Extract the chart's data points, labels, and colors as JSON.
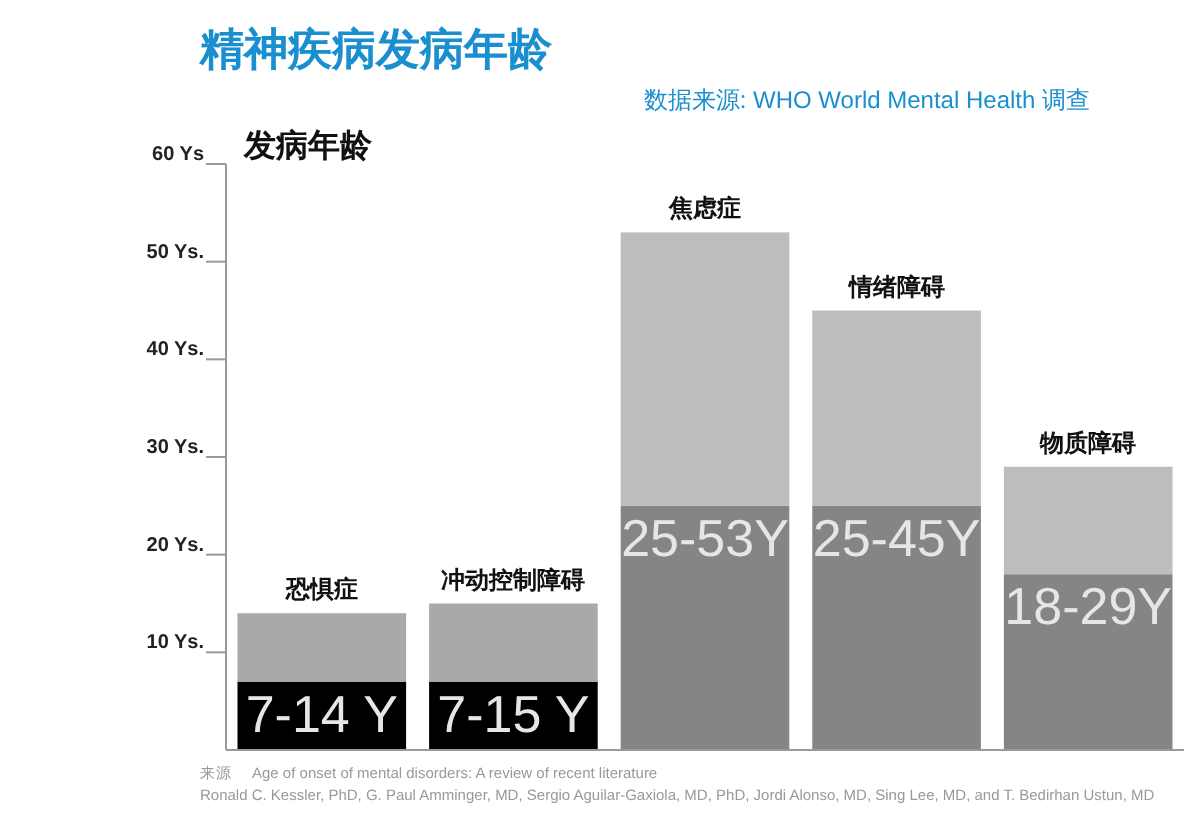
{
  "chart_data": {
    "type": "bar",
    "stacked": true,
    "title": "精神疾病发病年龄",
    "subtitle": "数据来源: WHO World Mental Health 调查",
    "ylabel": "发病年龄",
    "categories": [
      "恐惧症",
      "冲动控制障碍",
      "焦虑症",
      "情绪障碍",
      "物质障碍"
    ],
    "series": [
      {
        "colors": [
          "#000000",
          "#000000",
          "#858585",
          "#858585",
          "#858585"
        ],
        "values": [
          7,
          7,
          25,
          25,
          18
        ]
      },
      {
        "colors": [
          "#a9a9a9",
          "#a9a9a9",
          "#bdbdbd",
          "#bdbdbd",
          "#bdbdbd"
        ],
        "values": [
          7,
          8,
          28,
          20,
          11
        ]
      }
    ],
    "value_labels": [
      "7-14 Y",
      "7-15 Y",
      "25-53Y",
      "25-45Y",
      "18-29Y"
    ],
    "ylim": [
      0,
      60
    ],
    "yticks": [
      {
        "value": 10,
        "label": "10 Ys."
      },
      {
        "value": 20,
        "label": "20 Ys."
      },
      {
        "value": 30,
        "label": "30 Ys."
      },
      {
        "value": 40,
        "label": "40 Ys."
      },
      {
        "value": 50,
        "label": "50 Ys."
      },
      {
        "value": 60,
        "label": "60 Ys"
      }
    ],
    "grid": false,
    "annotations": [
      "来源",
      "Age of onset of mental disorders: A review of recent literature",
      "Ronald C. Kessler, PhD, G. Paul Amminger, MD, Sergio Aguilar-Gaxiola, MD, PhD, Jordi Alonso, MD, Sing Lee, MD, and T. Bedirhan Ustun, MD"
    ]
  }
}
